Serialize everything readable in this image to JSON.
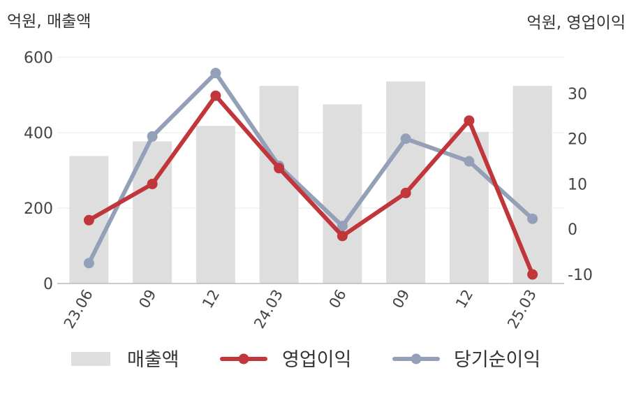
{
  "chart_data": {
    "type": "bar+line",
    "left_axis_title": "억원, 매출액",
    "right_axis_title": "억원, 영업이익",
    "categories": [
      "23.06",
      "09",
      "12",
      "24.03",
      "06",
      "09",
      "12",
      "25.03"
    ],
    "left_ylim": [
      0,
      600
    ],
    "left_ticks": [
      "0",
      "200",
      "400",
      "600"
    ],
    "right_ylim": [
      -12,
      38
    ],
    "right_ticks": [
      "-10",
      "0",
      "10",
      "20",
      "30"
    ],
    "grid": true,
    "legend_position": "bottom",
    "series": [
      {
        "name": "매출액",
        "type": "bar",
        "axis": "left",
        "color": "#dedede",
        "values": [
          338,
          377,
          418,
          524,
          475,
          536,
          402,
          524
        ]
      },
      {
        "name": "영업이익",
        "type": "line",
        "axis": "right",
        "color": "#c0363a",
        "values": [
          2,
          10,
          29.5,
          13.5,
          -1.5,
          8,
          24,
          -10
        ]
      },
      {
        "name": "당기순이익",
        "type": "line",
        "axis": "right",
        "color": "#94a0b8",
        "values": [
          -7.5,
          20.5,
          34.5,
          14,
          0.7,
          20,
          15,
          2.3
        ]
      }
    ]
  }
}
